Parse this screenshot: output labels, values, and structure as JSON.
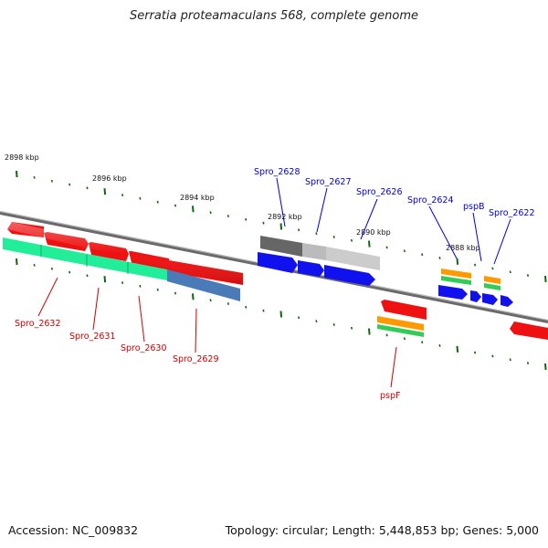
{
  "title": "Serratia proteamaculans 568, complete genome",
  "footer": {
    "accession": "Accession: NC_009832",
    "topology": "Topology: circular; Length: 5,448,853 bp; Genes: 5,000"
  },
  "colors": {
    "forward_cds": "#ee0000",
    "reverse_cds": "#0000ee",
    "green_track": "#22ee88",
    "steel_track": "#4477bb",
    "gray_track": "#777777",
    "orange_track": "#ff9900",
    "label_red": "#cc0000",
    "label_blue": "#0000cc",
    "tick": "#116611"
  },
  "ticks": [
    "2898 kbp",
    "2896 kbp",
    "2894 kbp",
    "2892 kbp",
    "2890 kbp",
    "2888 kbp"
  ],
  "top_labels": [
    "Spro_2628",
    "Spro_2627",
    "Spro_2626",
    "Spro_2624",
    "pspB",
    "Spro_2622"
  ],
  "bottom_labels": [
    "Spro_2632",
    "Spro_2631",
    "Spro_2630",
    "Spro_2629",
    "pspF"
  ]
}
